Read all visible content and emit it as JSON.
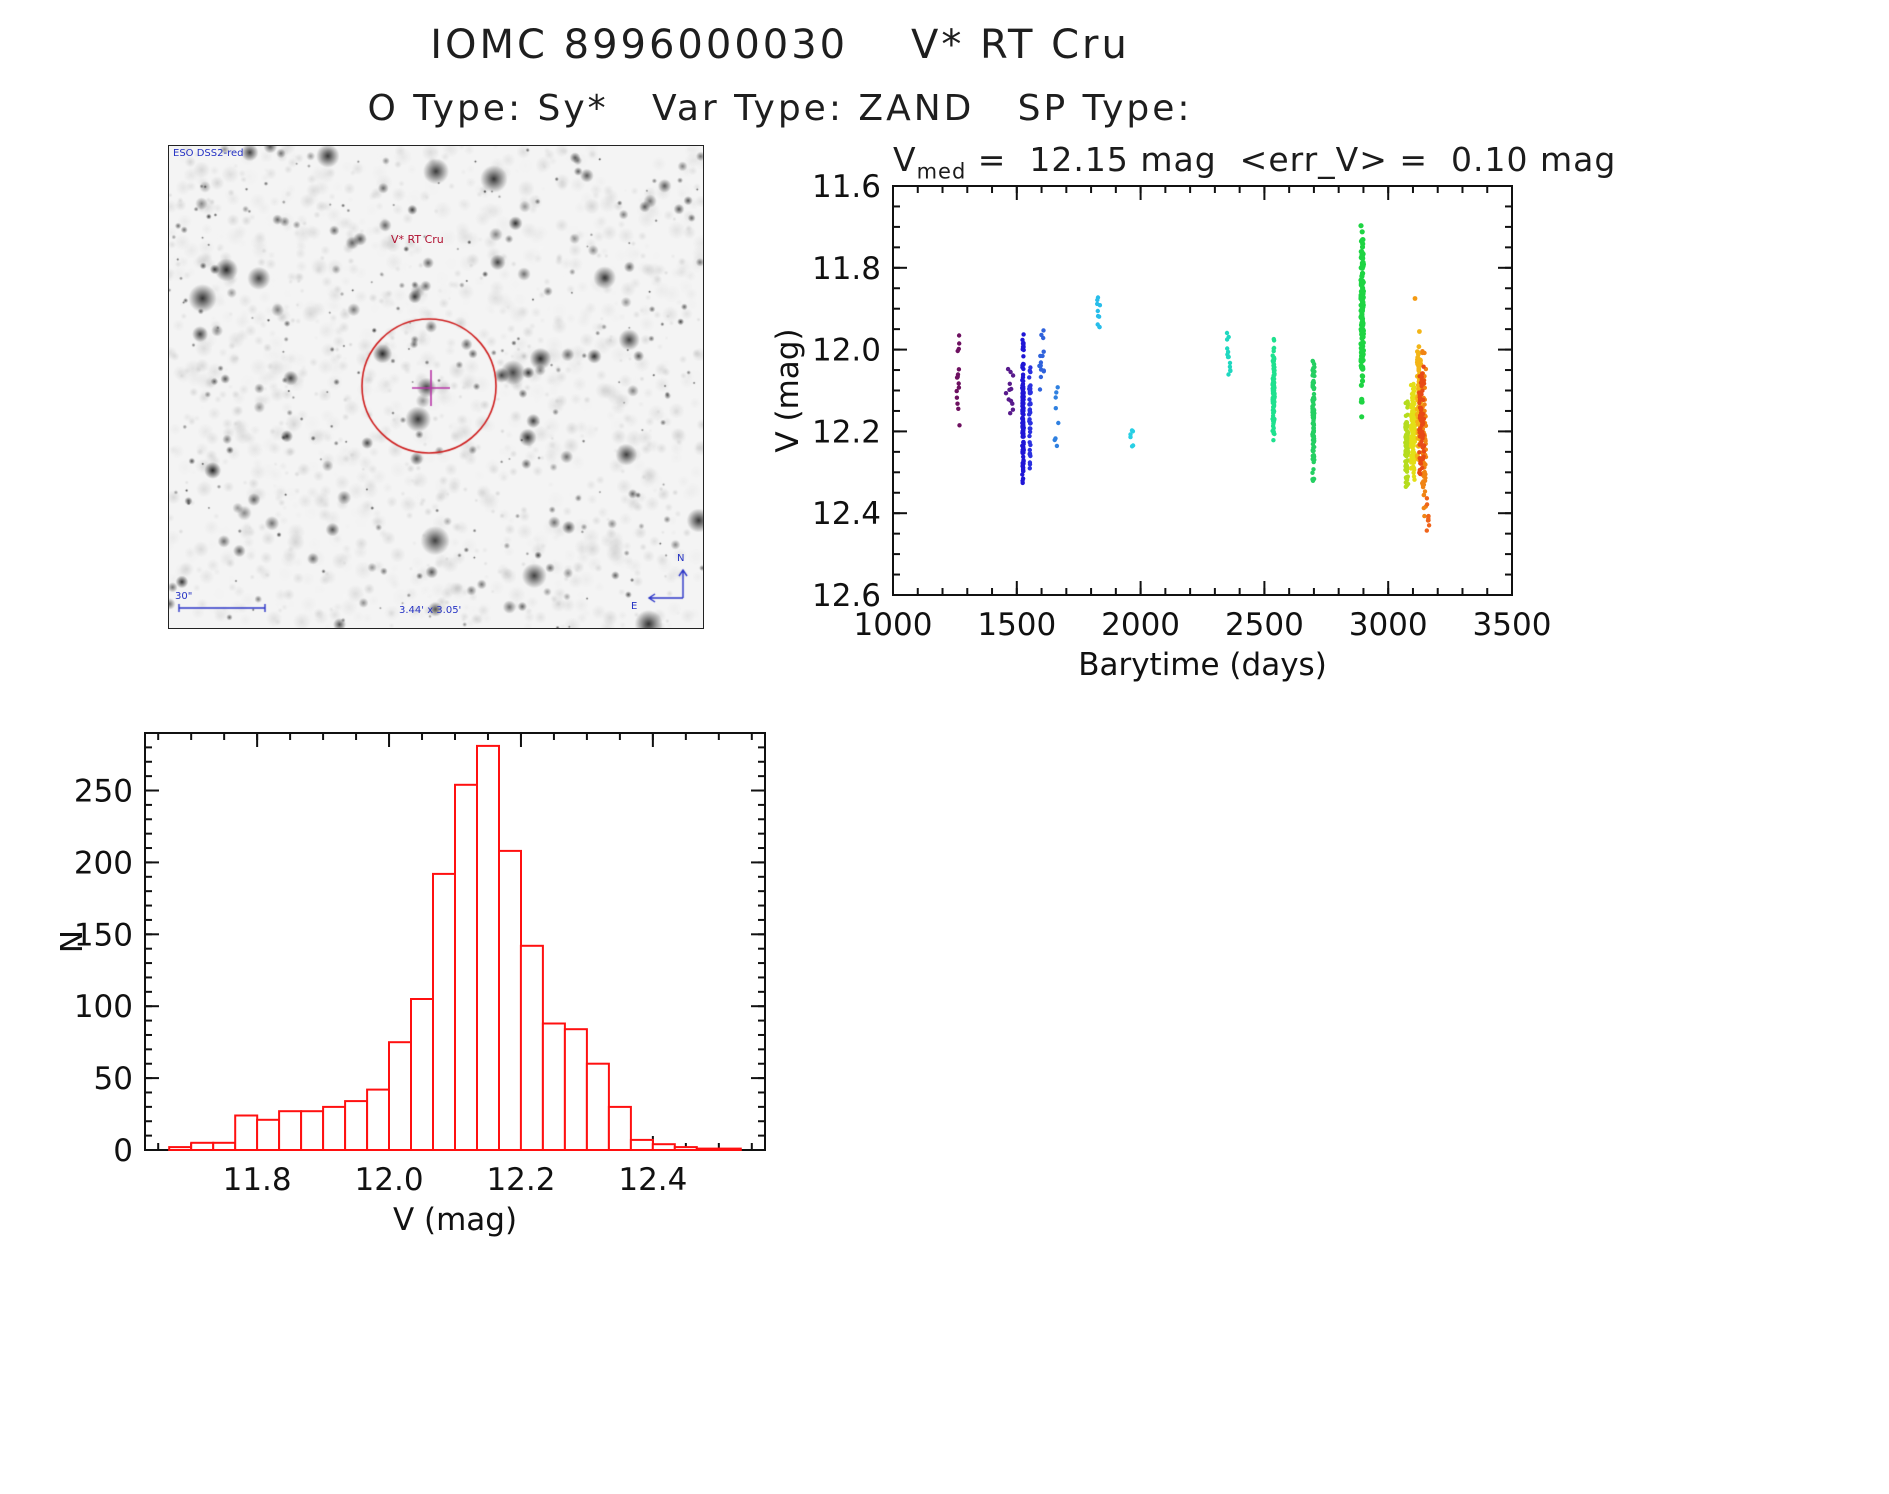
{
  "page": {
    "title": "IOMC 8996000030    V* RT Cru",
    "subtitle": "O Type: Sy*   Var Type: ZAND   SP Type:"
  },
  "finder": {
    "survey_label": "ESO DSS2-red",
    "target_label": "V* RT Cru",
    "scale_label": "30\"",
    "size_label": "3.44' x 3.05'",
    "compass_n": "N",
    "compass_e": "E"
  },
  "chart_data": [
    {
      "type": "scatter",
      "title_v": "V",
      "title_sub": "med",
      "title_rest": " =  12.15 mag  <err_V> =  0.10 mag",
      "xlabel": "Barytime (days)",
      "ylabel": "V (mag)",
      "xlim": [
        1000,
        3500
      ],
      "ylim_top_to_bottom": [
        11.6,
        12.6
      ],
      "y_axis_inverted": true,
      "grid": false,
      "legend": "none",
      "xticks": [
        "1000",
        "1500",
        "2000",
        "2500",
        "3000",
        "3500"
      ],
      "yticks": [
        "11.6",
        "11.8",
        "12.0",
        "12.2",
        "12.4",
        "12.6"
      ],
      "x_minor_step": 100,
      "y_minor_step": 0.05,
      "clusters": [
        {
          "t": 1263,
          "jt": 6,
          "v1": 11.93,
          "v2": 12.26,
          "n": 15,
          "c": "#6d1060",
          "r": 2.2
        },
        {
          "t": 1470,
          "jt": 18,
          "v1": 12.03,
          "v2": 12.16,
          "n": 12,
          "c": "#581a8c",
          "r": 2.2
        },
        {
          "t": 1525,
          "jt": 3,
          "v1": 11.95,
          "v2": 12.35,
          "n": 130,
          "c": "#2016d6",
          "r": 2.2
        },
        {
          "t": 1553,
          "jt": 3,
          "v1": 12.0,
          "v2": 12.3,
          "n": 40,
          "c": "#2a30e0",
          "r": 2.2
        },
        {
          "t": 1600,
          "jt": 10,
          "v1": 11.92,
          "v2": 12.12,
          "n": 14,
          "c": "#2f62dc",
          "r": 2.2
        },
        {
          "t": 1660,
          "jt": 8,
          "v1": 12.08,
          "v2": 12.24,
          "n": 8,
          "c": "#2f80e0",
          "r": 2.2
        },
        {
          "t": 1830,
          "jt": 6,
          "v1": 11.84,
          "v2": 11.96,
          "n": 10,
          "c": "#27bdea",
          "r": 2.2
        },
        {
          "t": 1965,
          "jt": 6,
          "v1": 12.19,
          "v2": 12.26,
          "n": 6,
          "c": "#27cfe4",
          "r": 2.2
        },
        {
          "t": 2355,
          "jt": 8,
          "v1": 11.95,
          "v2": 12.1,
          "n": 13,
          "c": "#1fd8c0",
          "r": 2.2
        },
        {
          "t": 2537,
          "jt": 4,
          "v1": 11.96,
          "v2": 12.24,
          "n": 110,
          "c": "#1fe08e",
          "r": 2.2
        },
        {
          "t": 2698,
          "jt": 4,
          "v1": 12.0,
          "v2": 12.35,
          "n": 110,
          "c": "#25cf62",
          "r": 2.2
        },
        {
          "t": 2895,
          "jt": 5,
          "v1": 11.67,
          "v2": 12.17,
          "n": 130,
          "c": "#1ed443",
          "r": 2.6
        },
        {
          "t": 3075,
          "jt": 6,
          "v1": 12.1,
          "v2": 12.37,
          "n": 90,
          "c": "#b5dc1e",
          "r": 2.2
        },
        {
          "t": 3100,
          "jt": 8,
          "v1": 12.08,
          "v2": 12.33,
          "n": 120,
          "c": "#e3df17",
          "r": 2.2
        },
        {
          "t": 3125,
          "jt": 8,
          "v1": 11.95,
          "v2": 12.3,
          "n": 100,
          "c": "#f3b517",
          "r": 2.4
        },
        {
          "t": 3145,
          "jt": 8,
          "v1": 12.0,
          "v2": 12.45,
          "n": 80,
          "c": "#f08414",
          "r": 2.2
        },
        {
          "t": 3135,
          "jt": 10,
          "v1": 12.02,
          "v2": 12.32,
          "n": 70,
          "c": "#e84a16",
          "r": 2.2
        },
        {
          "t": 3160,
          "jt": 6,
          "v1": 12.35,
          "v2": 12.5,
          "n": 8,
          "c": "#f0641a",
          "r": 2.2
        },
        {
          "t": 3110,
          "jt": 2,
          "v1": 11.87,
          "v2": 11.88,
          "n": 1,
          "c": "#f49a12",
          "r": 2.4
        }
      ]
    },
    {
      "type": "bar",
      "title": "",
      "xlabel": "V (mag)",
      "ylabel": "N",
      "bin_start": 11.6667,
      "bin_width": 0.03333,
      "counts": [
        2,
        5,
        5,
        24,
        21,
        27,
        27,
        30,
        34,
        42,
        75,
        105,
        192,
        254,
        281,
        208,
        142,
        88,
        84,
        60,
        30,
        7,
        4,
        2,
        1,
        1
      ],
      "xlim": [
        11.63,
        12.57
      ],
      "ylim": [
        0,
        290
      ],
      "xticks": [
        "11.8",
        "12.0",
        "12.2",
        "12.4"
      ],
      "yticks": [
        "0",
        "50",
        "100",
        "150",
        "200",
        "250"
      ],
      "x_minor_step": 0.05,
      "y_minor_step": 10,
      "bar_color": "#ff1010",
      "grid": false
    }
  ]
}
